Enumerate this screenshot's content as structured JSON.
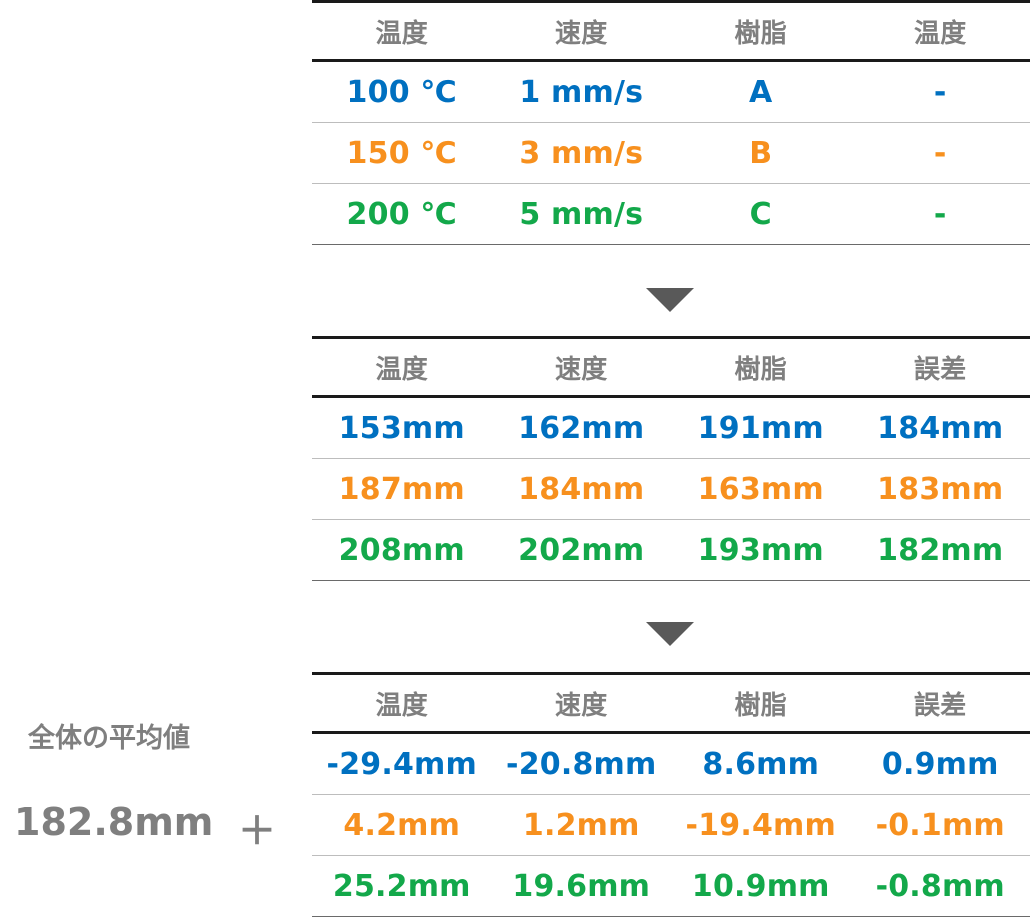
{
  "table1": {
    "headers": [
      "温度",
      "速度",
      "樹脂",
      "温度"
    ],
    "rows": [
      [
        "100 ℃",
        "1 mm/s",
        "A",
        "-"
      ],
      [
        "150 ℃",
        "3 mm/s",
        "B",
        "-"
      ],
      [
        "200 ℃",
        "5 mm/s",
        "C",
        "-"
      ]
    ]
  },
  "table2": {
    "headers": [
      "温度",
      "速度",
      "樹脂",
      "誤差"
    ],
    "rows": [
      [
        "153mm",
        "162mm",
        "191mm",
        "184mm"
      ],
      [
        "187mm",
        "184mm",
        "163mm",
        "183mm"
      ],
      [
        "208mm",
        "202mm",
        "193mm",
        "182mm"
      ]
    ]
  },
  "table3": {
    "headers": [
      "温度",
      "速度",
      "樹脂",
      "誤差"
    ],
    "rows": [
      [
        "-29.4mm",
        "-20.8mm",
        "8.6mm",
        "0.9mm"
      ],
      [
        "4.2mm",
        "1.2mm",
        "-19.4mm",
        "-0.1mm"
      ],
      [
        "25.2mm",
        "19.6mm",
        "10.9mm",
        "-0.8mm"
      ]
    ]
  },
  "overall": {
    "label": "全体の平均値",
    "value": "182.8mm",
    "plus": "＋"
  },
  "colors": {
    "row1": "#0070c0",
    "row2": "#f7901e",
    "row3": "#13a84a",
    "header": "#7f7f7f",
    "arrow": "#595959"
  }
}
